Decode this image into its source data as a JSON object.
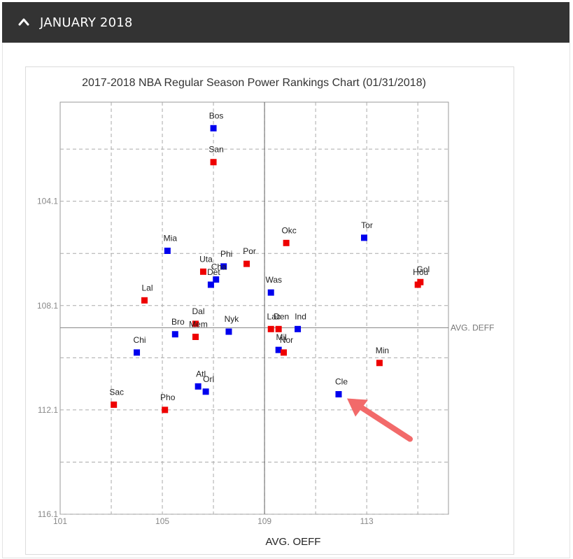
{
  "header": {
    "title": "JANUARY 2018"
  },
  "chart_data": {
    "type": "scatter",
    "title": "2017-2018 NBA Regular Season Power Rankings Chart (01/31/2018)",
    "xlabel": "AVG. OEFF",
    "ylabel": "",
    "xlim": [
      101,
      116.2
    ],
    "ylim": [
      100.3,
      116.1
    ],
    "y_inverted": true,
    "x_ticks": [
      101,
      105,
      109,
      113
    ],
    "y_ticks": [
      104.1,
      108.1,
      112.1,
      116.1
    ],
    "grid": true,
    "reference_lines": {
      "avg_oeff": 109.0,
      "avg_deff": 108.95,
      "avg_deff_label": "AVG. DEFF"
    },
    "colors": {
      "blue": "#0000ee",
      "red": "#ee0000"
    },
    "points": [
      {
        "label": "Bos",
        "x": 107.0,
        "y": 101.3,
        "color": "blue"
      },
      {
        "label": "San",
        "x": 107.0,
        "y": 102.6,
        "color": "red"
      },
      {
        "label": "Tor",
        "x": 112.9,
        "y": 105.5,
        "color": "blue"
      },
      {
        "label": "Okc",
        "x": 109.85,
        "y": 105.7,
        "color": "red"
      },
      {
        "label": "Mia",
        "x": 105.2,
        "y": 106.0,
        "color": "blue"
      },
      {
        "label": "Por",
        "x": 108.3,
        "y": 106.5,
        "color": "red"
      },
      {
        "label": "Phi",
        "x": 107.4,
        "y": 106.6,
        "color": "blue"
      },
      {
        "label": "Uta",
        "x": 106.6,
        "y": 106.8,
        "color": "red"
      },
      {
        "label": "Cha",
        "x": 107.1,
        "y": 107.1,
        "color": "blue"
      },
      {
        "label": "Det",
        "x": 106.9,
        "y": 107.3,
        "color": "blue"
      },
      {
        "label": "Gol",
        "x": 115.1,
        "y": 107.2,
        "color": "red"
      },
      {
        "label": "Hou",
        "x": 115.0,
        "y": 107.3,
        "color": "red"
      },
      {
        "label": "Was",
        "x": 109.25,
        "y": 107.6,
        "color": "blue"
      },
      {
        "label": "Lal",
        "x": 104.3,
        "y": 107.9,
        "color": "red"
      },
      {
        "label": "Dal",
        "x": 106.3,
        "y": 108.8,
        "color": "red"
      },
      {
        "label": "Bro",
        "x": 105.5,
        "y": 109.2,
        "color": "blue"
      },
      {
        "label": "Mem",
        "x": 106.3,
        "y": 109.3,
        "color": "red"
      },
      {
        "label": "Nyk",
        "x": 107.6,
        "y": 109.1,
        "color": "blue"
      },
      {
        "label": "Lac",
        "x": 109.25,
        "y": 109.0,
        "color": "red"
      },
      {
        "label": "Den",
        "x": 109.55,
        "y": 109.0,
        "color": "red"
      },
      {
        "label": "Ind",
        "x": 110.3,
        "y": 109.0,
        "color": "blue"
      },
      {
        "label": "Mil",
        "x": 109.55,
        "y": 109.8,
        "color": "blue"
      },
      {
        "label": "Nor",
        "x": 109.75,
        "y": 109.9,
        "color": "red"
      },
      {
        "label": "Chi",
        "x": 104.0,
        "y": 109.9,
        "color": "blue"
      },
      {
        "label": "Min",
        "x": 113.5,
        "y": 110.3,
        "color": "red"
      },
      {
        "label": "Atl",
        "x": 106.4,
        "y": 111.2,
        "color": "blue"
      },
      {
        "label": "Orl",
        "x": 106.7,
        "y": 111.4,
        "color": "blue"
      },
      {
        "label": "Cle",
        "x": 111.9,
        "y": 111.5,
        "color": "blue"
      },
      {
        "label": "Sac",
        "x": 103.1,
        "y": 111.9,
        "color": "red"
      },
      {
        "label": "Pho",
        "x": 105.1,
        "y": 112.1,
        "color": "red"
      }
    ],
    "annotation": {
      "type": "arrow",
      "target": "Cle",
      "color": "#f26a6a"
    }
  }
}
